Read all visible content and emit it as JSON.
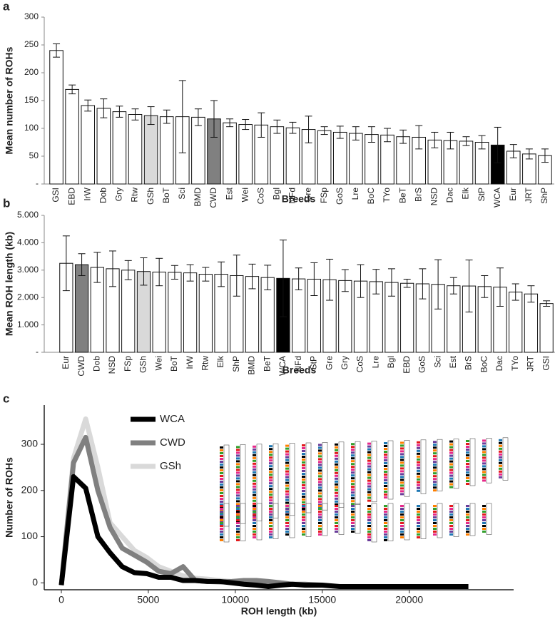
{
  "chart_data": [
    {
      "type": "bar",
      "panel": "a",
      "ylabel": "Mean number of ROHs",
      "xlabel": "Breeds",
      "categories": [
        "GSI",
        "EBD",
        "IrW",
        "Dob",
        "Gry",
        "Rtw",
        "GSh",
        "BoT",
        "Sci",
        "BMD",
        "CWD",
        "Est",
        "Wei",
        "CoS",
        "Bgl",
        "NFd",
        "Gre",
        "FSp",
        "GoS",
        "Lre",
        "BoC",
        "TYo",
        "BeT",
        "BrS",
        "NSD",
        "Dac",
        "Elk",
        "StP",
        "WCA",
        "Eur",
        "JRT",
        "ShP"
      ],
      "values": [
        240,
        170,
        141,
        136,
        130,
        125,
        123,
        121,
        121,
        120,
        117,
        110,
        107,
        106,
        103,
        101,
        98,
        96,
        93,
        91,
        89,
        88,
        85,
        84,
        79,
        78,
        77,
        75,
        70,
        59,
        54,
        51
      ],
      "errors": [
        12,
        8,
        10,
        17,
        10,
        10,
        16,
        12,
        65,
        15,
        33,
        7,
        9,
        22,
        12,
        10,
        24,
        7,
        11,
        12,
        14,
        12,
        12,
        21,
        14,
        15,
        8,
        12,
        32,
        12,
        9,
        12
      ],
      "colors": [
        "#ffffff",
        "#ffffff",
        "#ffffff",
        "#ffffff",
        "#ffffff",
        "#ffffff",
        "#d9d9d9",
        "#ffffff",
        "#ffffff",
        "#ffffff",
        "#808080",
        "#ffffff",
        "#ffffff",
        "#ffffff",
        "#ffffff",
        "#ffffff",
        "#ffffff",
        "#ffffff",
        "#ffffff",
        "#ffffff",
        "#ffffff",
        "#ffffff",
        "#ffffff",
        "#ffffff",
        "#ffffff",
        "#ffffff",
        "#ffffff",
        "#ffffff",
        "#000000",
        "#ffffff",
        "#ffffff",
        "#ffffff"
      ],
      "ylim": [
        0,
        300
      ],
      "yticks": [
        {
          "value": 0,
          "label": "-"
        },
        50,
        100,
        150,
        200,
        250,
        300
      ]
    },
    {
      "type": "bar",
      "panel": "b",
      "ylabel": "Mean ROH length (kb)",
      "xlabel": "Breeds",
      "categories": [
        "Eur",
        "CWD",
        "Dob",
        "NSD",
        "FSp",
        "GSh",
        "Wei",
        "BoT",
        "IrW",
        "Rtw",
        "Elk",
        "ShP",
        "BMD",
        "BeT",
        "WCA",
        "NFd",
        "StP",
        "Gre",
        "Gry",
        "CoS",
        "Lre",
        "Bgl",
        "EBD",
        "GoS",
        "Sci",
        "Est",
        "BrS",
        "BoC",
        "Dac",
        "TYo",
        "JRT",
        "GSI"
      ],
      "values": [
        3250,
        3200,
        3100,
        3050,
        3000,
        2950,
        2930,
        2920,
        2900,
        2850,
        2850,
        2800,
        2770,
        2730,
        2700,
        2680,
        2670,
        2650,
        2620,
        2600,
        2580,
        2550,
        2520,
        2500,
        2480,
        2430,
        2420,
        2400,
        2380,
        2200,
        2130,
        1780
      ],
      "errors": [
        1000,
        400,
        550,
        650,
        350,
        500,
        500,
        250,
        300,
        250,
        450,
        750,
        450,
        450,
        1400,
        400,
        600,
        750,
        400,
        600,
        450,
        500,
        150,
        550,
        900,
        300,
        950,
        400,
        700,
        300,
        300,
        100
      ],
      "colors": [
        "#ffffff",
        "#808080",
        "#ffffff",
        "#ffffff",
        "#ffffff",
        "#d9d9d9",
        "#ffffff",
        "#ffffff",
        "#ffffff",
        "#ffffff",
        "#ffffff",
        "#ffffff",
        "#ffffff",
        "#ffffff",
        "#000000",
        "#ffffff",
        "#ffffff",
        "#ffffff",
        "#ffffff",
        "#ffffff",
        "#ffffff",
        "#ffffff",
        "#ffffff",
        "#ffffff",
        "#ffffff",
        "#ffffff",
        "#ffffff",
        "#ffffff",
        "#ffffff",
        "#ffffff",
        "#ffffff",
        "#ffffff"
      ],
      "ylim": [
        0,
        5000
      ],
      "yticks": [
        {
          "value": 0,
          "label": "-"
        },
        {
          "value": 1000,
          "label": "1.000"
        },
        {
          "value": 2000,
          "label": "2.000"
        },
        {
          "value": 3000,
          "label": "3.000"
        },
        {
          "value": 4000,
          "label": "4.000"
        },
        {
          "value": 5000,
          "label": "5.000"
        }
      ]
    },
    {
      "type": "line",
      "panel": "c",
      "ylabel": "Number of ROHs",
      "xlabel": "ROH length (kb)",
      "x": [
        0,
        700,
        1400,
        2100,
        2800,
        3500,
        4200,
        4900,
        5600,
        6300,
        7000,
        7700,
        8400,
        9100,
        9800,
        10500,
        11200,
        11900,
        12600,
        13300,
        14000,
        15000,
        16000,
        17000,
        18000,
        19000,
        20000,
        21000,
        22000,
        23400
      ],
      "series": [
        {
          "name": "GSh",
          "color": "#d9d9d9",
          "values": [
            -5,
            270,
            355,
            250,
            130,
            100,
            70,
            55,
            35,
            25,
            15,
            10,
            8,
            5,
            3,
            0,
            -3,
            null,
            null,
            null,
            null,
            null,
            null,
            null,
            null,
            null,
            null,
            null,
            null,
            null
          ]
        },
        {
          "name": "CWD",
          "color": "#808080",
          "values": [
            -5,
            260,
            315,
            200,
            120,
            75,
            60,
            45,
            25,
            20,
            35,
            5,
            3,
            2,
            3,
            5,
            5,
            3,
            0,
            -3,
            -3,
            -5,
            null,
            null,
            null,
            null,
            null,
            null,
            null,
            null
          ]
        },
        {
          "name": "WCA",
          "color": "#000000",
          "values": [
            -5,
            230,
            205,
            100,
            65,
            35,
            22,
            20,
            12,
            12,
            5,
            5,
            3,
            3,
            0,
            -3,
            -5,
            -8,
            -5,
            -3,
            -5,
            -5,
            -8,
            -8,
            -8,
            -8,
            -8,
            -8,
            -8,
            -8
          ]
        }
      ],
      "xlim": [
        -1000,
        26000
      ],
      "ylim": [
        -15,
        385
      ],
      "xticks": [
        0,
        5000,
        10000,
        15000,
        20000
      ],
      "yticks": [
        0,
        100,
        200,
        300
      ]
    }
  ]
}
